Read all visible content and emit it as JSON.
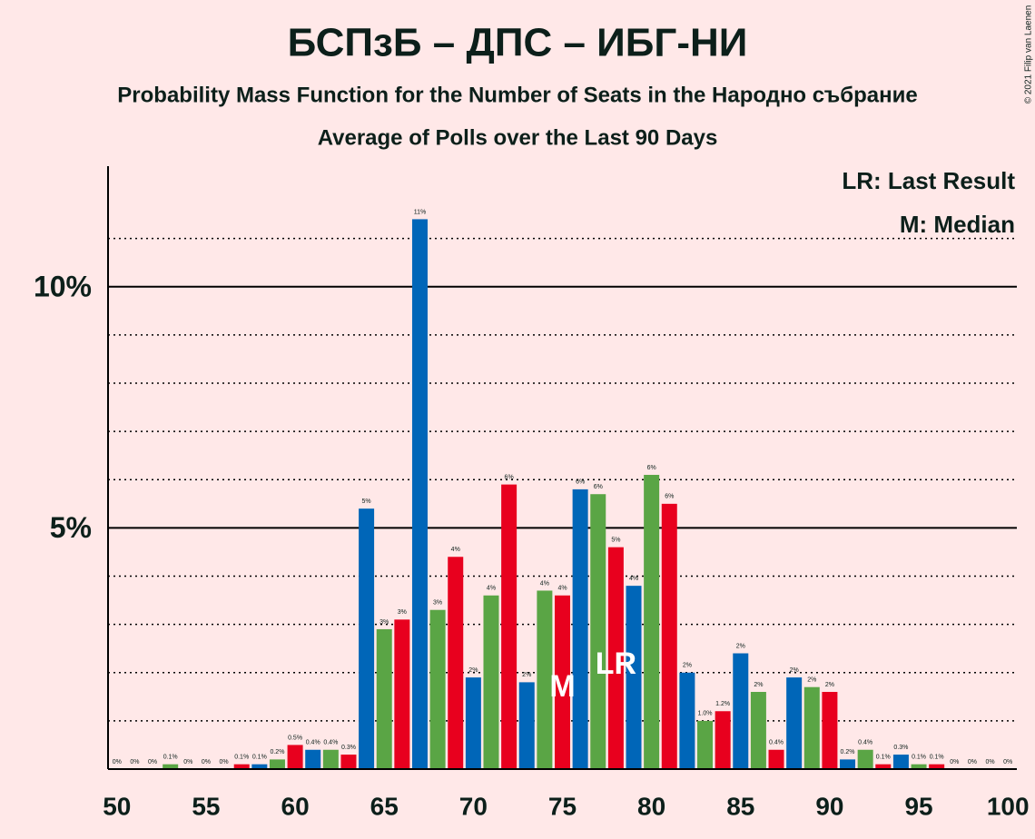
{
  "chart_data": {
    "type": "bar",
    "title": "БСПзБ – ДПС – ИБГ-НИ",
    "subtitle": "Probability Mass Function for the Number of Seats in the Народно събрание",
    "subtitle2": "Average of Polls over the Last 90 Days",
    "copyright": "© 2021 Filip van Laenen",
    "legend": [
      "LR: Last Result",
      "M: Median"
    ],
    "legend_position": "upper right",
    "categories": [
      50,
      51,
      52,
      53,
      54,
      55,
      56,
      57,
      58,
      59,
      60,
      61,
      62,
      63,
      64,
      65,
      66,
      67,
      68,
      69,
      70,
      71,
      72,
      73,
      74,
      75,
      76,
      77,
      78,
      79,
      80,
      81,
      82,
      83,
      84,
      85,
      86,
      87,
      88,
      89,
      90,
      91,
      92,
      93,
      94,
      95,
      96,
      97,
      98,
      99,
      100
    ],
    "values": [
      0,
      0,
      0,
      0.1,
      0,
      0,
      0,
      0.1,
      0.1,
      0.2,
      0.5,
      0.4,
      0.4,
      0.3,
      5.4,
      2.9,
      3.1,
      11.4,
      3.3,
      4.4,
      1.9,
      3.6,
      5.9,
      1.8,
      3.7,
      3.6,
      5.8,
      5.7,
      4.6,
      3.8,
      6.1,
      5.5,
      2.0,
      1.0,
      1.2,
      2.4,
      1.6,
      0.4,
      1.9,
      1.7,
      1.6,
      0.2,
      0.4,
      0.1,
      0.3,
      0.1,
      0.1,
      0,
      0,
      0,
      0
    ],
    "value_labels": [
      "0%",
      "0%",
      "0%",
      "0.1%",
      "0%",
      "0%",
      "0%",
      "0.1%",
      "0.1%",
      "0.2%",
      "0.5%",
      "0.4%",
      "0.4%",
      "0.3%",
      "5%",
      "3%",
      "3%",
      "11%",
      "3%",
      "4%",
      "2%",
      "4%",
      "6%",
      "2%",
      "4%",
      "4%",
      "6%",
      "6%",
      "5%",
      "4%",
      "6%",
      "6%",
      "2%",
      "1.0%",
      "1.2%",
      "2%",
      "2%",
      "0.4%",
      "2%",
      "2%",
      "2%",
      "0.2%",
      "0.4%",
      "0.1%",
      "0.3%",
      "0.1%",
      "0.1%",
      "0%",
      "0%",
      "0%",
      "0%"
    ],
    "colors": [
      "#5aa545",
      "#e8001e",
      "#0066b8"
    ],
    "xlim": [
      49.5,
      100.5
    ],
    "xticks": [
      50,
      55,
      60,
      65,
      70,
      75,
      80,
      85,
      90,
      95,
      100
    ],
    "ylim": [
      0,
      12.5
    ],
    "yticks": [
      {
        "value": 5,
        "label": "5%"
      },
      {
        "value": 10,
        "label": "10%"
      }
    ],
    "minor_yticks": [
      1,
      2,
      3,
      4,
      6,
      7,
      8,
      9,
      11
    ],
    "median": {
      "label": "M",
      "x": 75
    },
    "last_result": {
      "label": "LR",
      "x": 78
    }
  }
}
